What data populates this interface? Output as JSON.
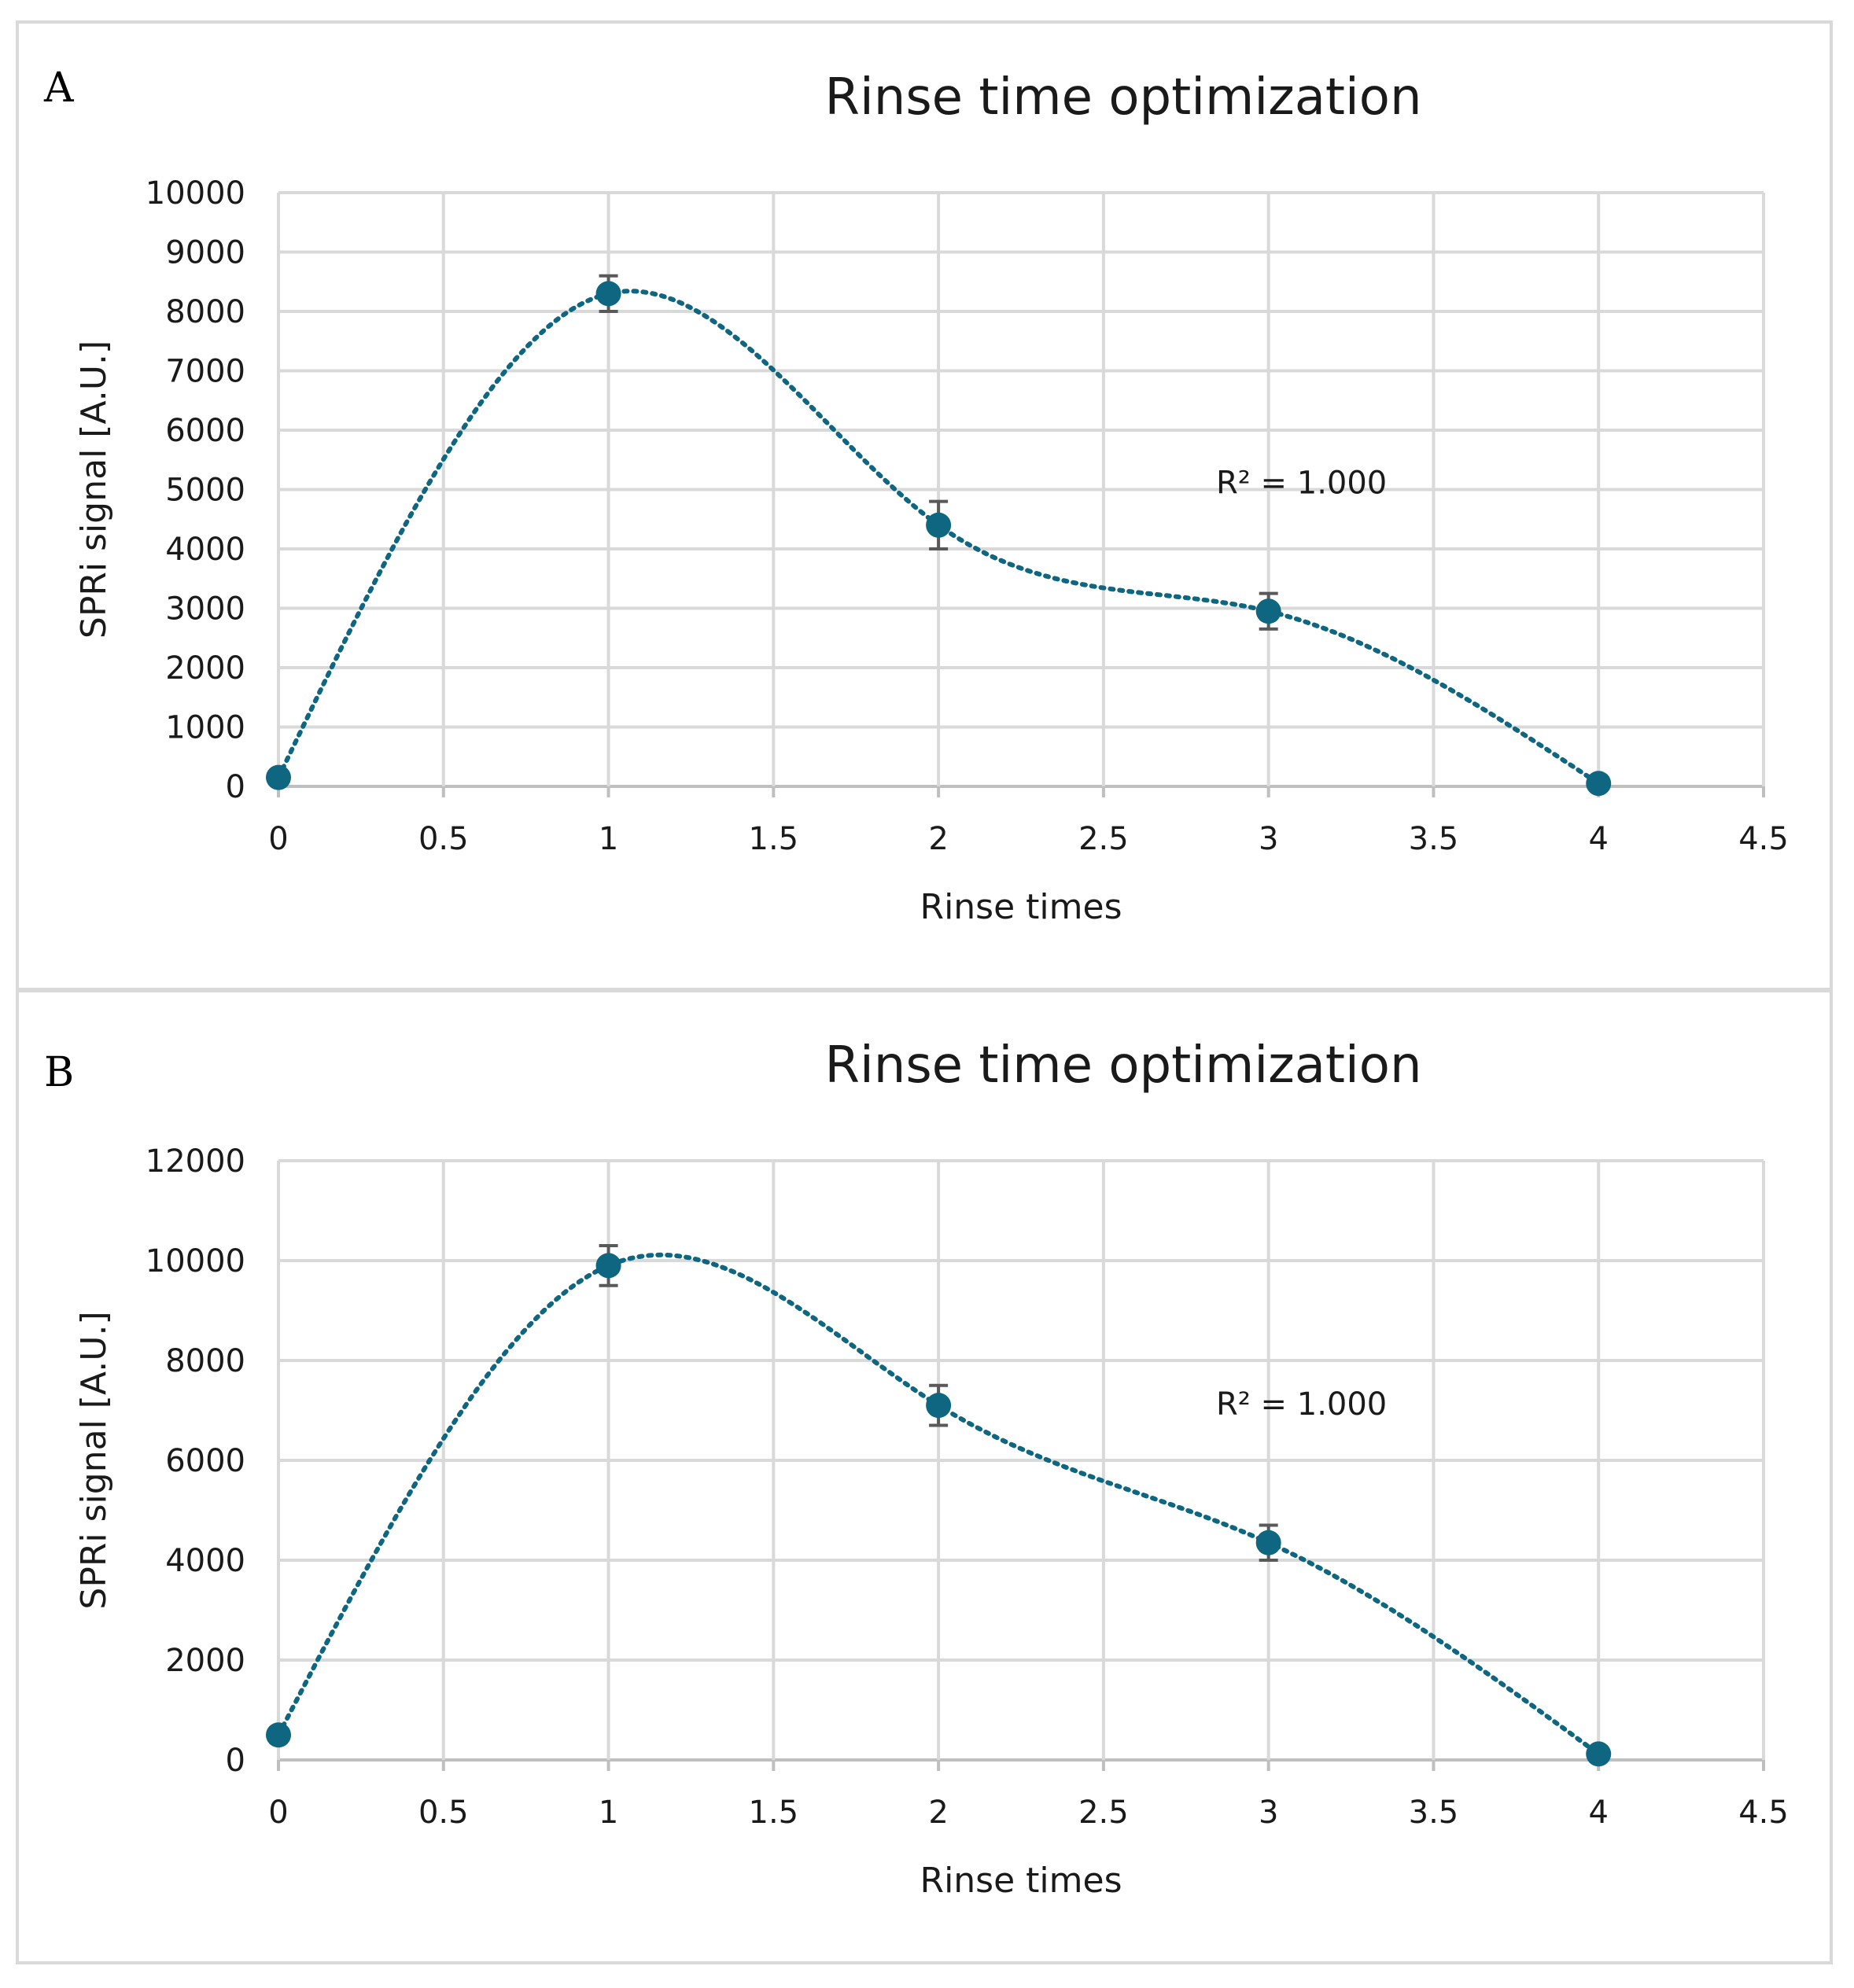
{
  "chart_data": [
    {
      "panel": "A",
      "type": "scatter",
      "title": "Rinse time optimization",
      "xlabel": "Rinse times",
      "ylabel": "SPRi signal [A.U.]",
      "xlim": [
        0,
        4.5
      ],
      "ylim": [
        0,
        10000
      ],
      "xticks": [
        "0",
        "0.5",
        "1",
        "1.5",
        "2",
        "2.5",
        "3",
        "3.5",
        "4",
        "4.5"
      ],
      "yticks": [
        "0",
        "1000",
        "2000",
        "3000",
        "4000",
        "5000",
        "6000",
        "7000",
        "8000",
        "9000",
        "10000"
      ],
      "grid": true,
      "series": [
        {
          "name": "SPRi signal",
          "x": [
            0,
            1,
            2,
            3,
            4
          ],
          "y": [
            150,
            8300,
            4400,
            2950,
            50
          ],
          "error": [
            0,
            300,
            400,
            300,
            0
          ],
          "trendline": "polynomial (dotted)",
          "color": "#0e6680"
        }
      ],
      "annotation": "R² = 1.000"
    },
    {
      "panel": "B",
      "type": "scatter",
      "title": "Rinse time optimization",
      "xlabel": "Rinse times",
      "ylabel": "SPRi signal [A.U.]",
      "xlim": [
        0,
        4.5
      ],
      "ylim": [
        0,
        12000
      ],
      "xticks": [
        "0",
        "0.5",
        "1",
        "1.5",
        "2",
        "2.5",
        "3",
        "3.5",
        "4",
        "4.5"
      ],
      "yticks": [
        "0",
        "2000",
        "4000",
        "6000",
        "8000",
        "10000",
        "12000"
      ],
      "grid": true,
      "series": [
        {
          "name": "SPRi signal",
          "x": [
            0,
            1,
            2,
            3,
            4
          ],
          "y": [
            500,
            9900,
            7100,
            4350,
            120
          ],
          "error": [
            0,
            400,
            400,
            350,
            0
          ],
          "trendline": "polynomial (dotted)",
          "color": "#0e6680"
        }
      ],
      "annotation": "R² = 1.000"
    }
  ]
}
